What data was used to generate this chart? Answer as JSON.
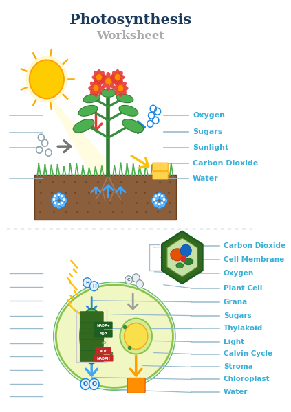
{
  "title": "Photosynthesis",
  "subtitle": "Worksheet",
  "title_color": "#1a3a5c",
  "subtitle_color": "#aaaaaa",
  "background_color": "#ffffff",
  "top_labels": [
    "Oxygen",
    "Sugars",
    "Sunlight",
    "Carbon Dioxide",
    "Water"
  ],
  "bottom_labels": [
    "Carbon Dioxide",
    "Cell Membrane",
    "Oxygen",
    "Plant Cell",
    "Grana",
    "Sugars",
    "Thylakoid",
    "Light",
    "Calvin Cycle",
    "Stroma",
    "Chloroplast",
    "Water"
  ],
  "label_color": "#3ab0d8",
  "line_color": "#99bbcc",
  "dashed_line_color": "#88aabb"
}
